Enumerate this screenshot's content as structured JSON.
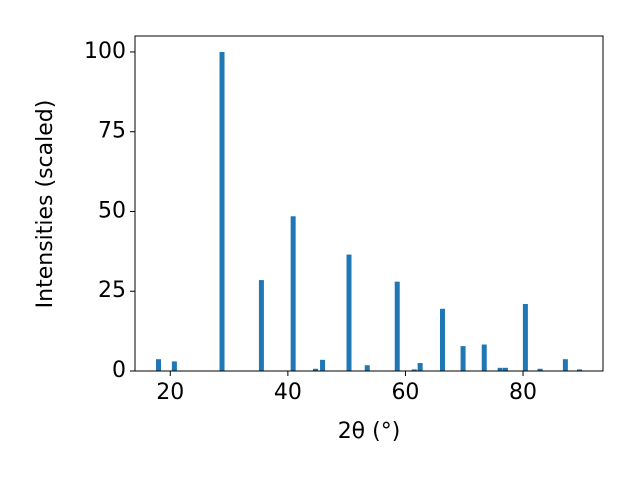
{
  "chart_data": {
    "type": "bar",
    "x_label": "2θ (°)",
    "y_label": "Intensities (scaled)",
    "x": [
      18.0,
      20.7,
      28.8,
      35.5,
      40.9,
      44.7,
      45.9,
      50.4,
      53.5,
      58.6,
      61.5,
      62.5,
      66.3,
      69.8,
      73.4,
      76.1,
      77.0,
      80.4,
      82.9,
      87.2,
      89.6
    ],
    "values": [
      3.7,
      3.0,
      100,
      28.5,
      48.5,
      0.7,
      3.5,
      36.5,
      1.8,
      28,
      0.5,
      2.5,
      19.5,
      7.8,
      8.3,
      1,
      1,
      21,
      0.7,
      3.7,
      0.5
    ],
    "color": "#1f77b4",
    "xlim": [
      14,
      93.6
    ],
    "ylim": [
      0,
      105
    ],
    "xticks": [
      20,
      40,
      60,
      80
    ],
    "yticks": [
      0,
      25,
      50,
      75,
      100
    ]
  }
}
